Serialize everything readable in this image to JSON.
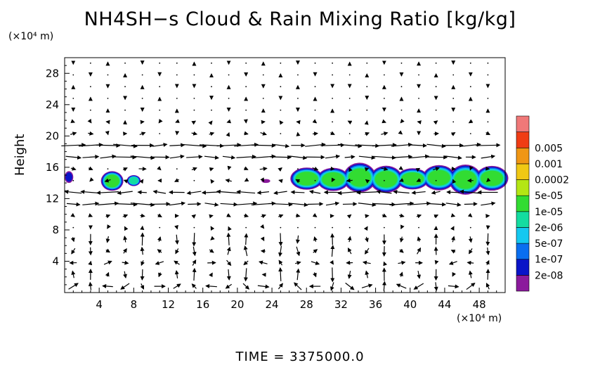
{
  "chart_data": {
    "type": "heatmap",
    "title": "NH4SH−s Cloud & Rain Mixing Ratio [kg/kg]",
    "xlabel": "",
    "ylabel": "Height",
    "x_unit": "(×10⁴ m)",
    "y_unit": "(×10⁴ m)",
    "xlim": [
      0,
      51
    ],
    "ylim": [
      0,
      30
    ],
    "x_ticks": [
      4,
      8,
      12,
      16,
      20,
      24,
      28,
      32,
      36,
      40,
      44,
      48
    ],
    "y_ticks": [
      4,
      8,
      12,
      16,
      20,
      24,
      28
    ],
    "colorbar": {
      "levels": [
        "2e-08",
        "1e-07",
        "5e-07",
        "2e-06",
        "1e-05",
        "5e-05",
        "0.0002",
        "0.001",
        "0.005"
      ],
      "colors": [
        "#8b1a9c",
        "#0a14c8",
        "#0a6ef0",
        "#14c8f0",
        "#14dca0",
        "#32dc32",
        "#b4e614",
        "#f0c814",
        "#f09614",
        "#f03c14",
        "#f07878"
      ]
    },
    "cloud_regions": [
      {
        "x": [
          0,
          1
        ],
        "y": [
          14,
          15.5
        ],
        "max_level": "1e-07"
      },
      {
        "x": [
          4.2,
          6.8
        ],
        "y": [
          13,
          15.5
        ],
        "max_level": "5e-05"
      },
      {
        "x": [
          7.2,
          8.8
        ],
        "y": [
          13.6,
          15
        ],
        "max_level": "1e-05"
      },
      {
        "x": [
          22.8,
          23.8
        ],
        "y": [
          14,
          14.5
        ],
        "max_level": "2e-08"
      },
      {
        "x": [
          26.5,
          51
        ],
        "y": [
          12.8,
          16.3
        ],
        "max_level": "5e-05"
      }
    ],
    "wind_field": "arrows on a regular grid; strong eastward/westward jets near heights 11, 13, 17 and 19; circulation cells below height 8"
  },
  "footer": {
    "time_label": "TIME  =  3375000.0"
  }
}
